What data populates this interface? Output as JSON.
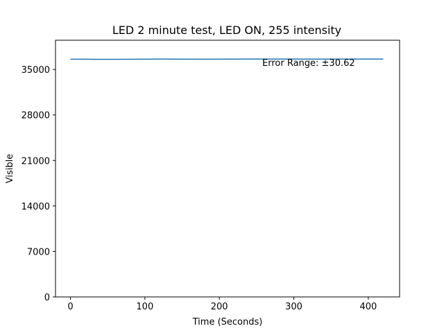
{
  "chart_data": {
    "type": "line",
    "title": "LED 2 minute test, LED ON, 255 intensity",
    "xlabel": "Time (Seconds)",
    "ylabel": "Visible",
    "xlim": [
      -20,
      442
    ],
    "ylim": [
      0,
      39500
    ],
    "xticks": [
      0,
      100,
      200,
      300,
      400
    ],
    "yticks": [
      0,
      7000,
      14000,
      21000,
      28000,
      35000
    ],
    "annotation": "Error Range: ±30.62",
    "line_color": "#1f77b4",
    "series": [
      {
        "x": [
          0,
          30,
          60,
          90,
          120,
          150,
          180,
          210,
          240,
          270,
          300,
          330,
          360,
          390,
          420
        ],
        "y": [
          36580,
          36570,
          36560,
          36580,
          36600,
          36590,
          36580,
          36590,
          36600,
          36610,
          36600,
          36590,
          36600,
          36600,
          36600
        ]
      }
    ]
  }
}
